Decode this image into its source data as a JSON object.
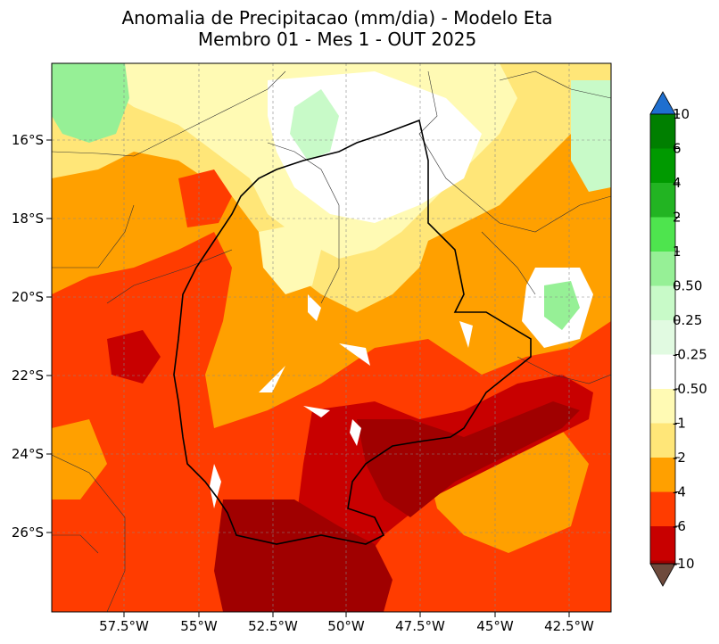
{
  "title": {
    "line1": "Anomalia de Precipitacao (mm/dia) - Modelo Eta",
    "line2": "Membro 01 - Mes 1 - OUT 2025"
  },
  "axes": {
    "lat_labels": [
      "16°S",
      "18°S",
      "20°S",
      "22°S",
      "24°S",
      "26°S"
    ],
    "lon_labels": [
      "57.5°W",
      "55°W",
      "52.5°W",
      "50°W",
      "47.5°W",
      "45°W",
      "42.5°W"
    ]
  },
  "colorbar": {
    "labels": [
      "10",
      "6",
      "4",
      "2",
      "1",
      "0.50",
      "0.25",
      "-0.25",
      "-0.50",
      "-1",
      "-2",
      "-4",
      "-6",
      "-10"
    ],
    "colors": [
      "#007f00",
      "#009a00",
      "#22b422",
      "#4ee44e",
      "#96f096",
      "#c8fac8",
      "#e1fae1",
      "#ffffff",
      "#fffab4",
      "#ffe678",
      "#ffa000",
      "#ff3c00",
      "#c80000",
      "#a00000"
    ],
    "over_color": "#1f6fcf",
    "under_color": "#6e4a3c"
  },
  "palette": {
    "dark_red": "#a00000",
    "red": "#c80000",
    "red_orange": "#ff3c00",
    "orange": "#ffa000",
    "yellow": "#ffe678",
    "pale_yellow": "#fffab4",
    "white": "#ffffff",
    "pale_green": "#e1fae1",
    "light_green": "#c8fac8",
    "green": "#96f096",
    "bright_green": "#4ee44e"
  }
}
